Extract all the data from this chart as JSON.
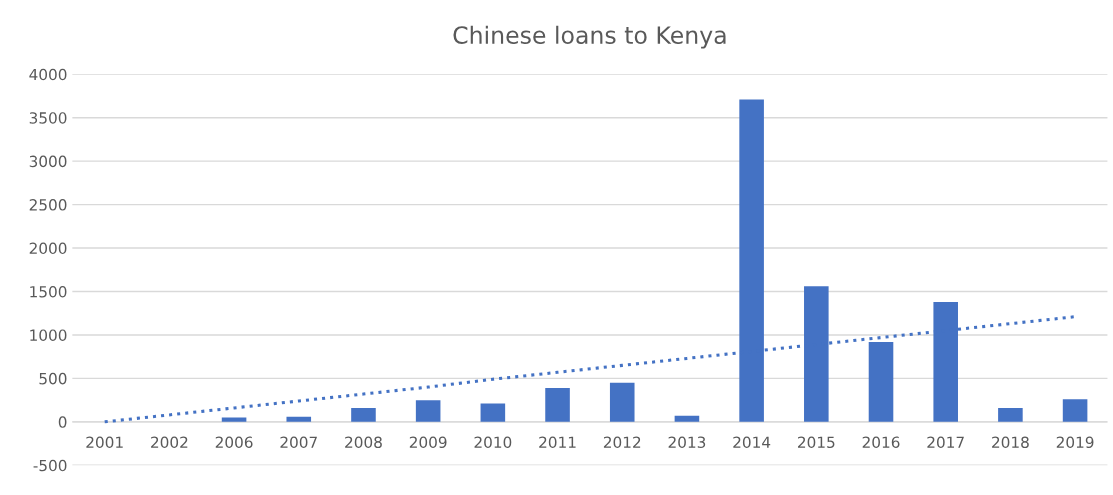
{
  "chart_data": {
    "type": "bar",
    "title": "Chinese loans to Kenya",
    "categories": [
      "2001",
      "2002",
      "2006",
      "2007",
      "2008",
      "2009",
      "2010",
      "2011",
      "2012",
      "2013",
      "2014",
      "2015",
      "2016",
      "2017",
      "2018",
      "2019"
    ],
    "series": [
      {
        "color": "#4472c4",
        "values": [
          0,
          0,
          50,
          60,
          160,
          250,
          210,
          390,
          450,
          70,
          3710,
          1560,
          920,
          1380,
          160,
          260
        ]
      },
      {
        "type": "line",
        "color": "#4472c4",
        "line_style": "dotted",
        "values": [
          0,
          80,
          160,
          240,
          320,
          400,
          490,
          570,
          650,
          730,
          810,
          890,
          970,
          1050,
          1130,
          1210
        ]
      }
    ],
    "ylim": [
      -500,
      4000
    ],
    "yticks": [
      -500,
      0,
      500,
      1000,
      1500,
      2000,
      2500,
      3000,
      3500,
      4000
    ],
    "grid": "y",
    "legend": false
  }
}
